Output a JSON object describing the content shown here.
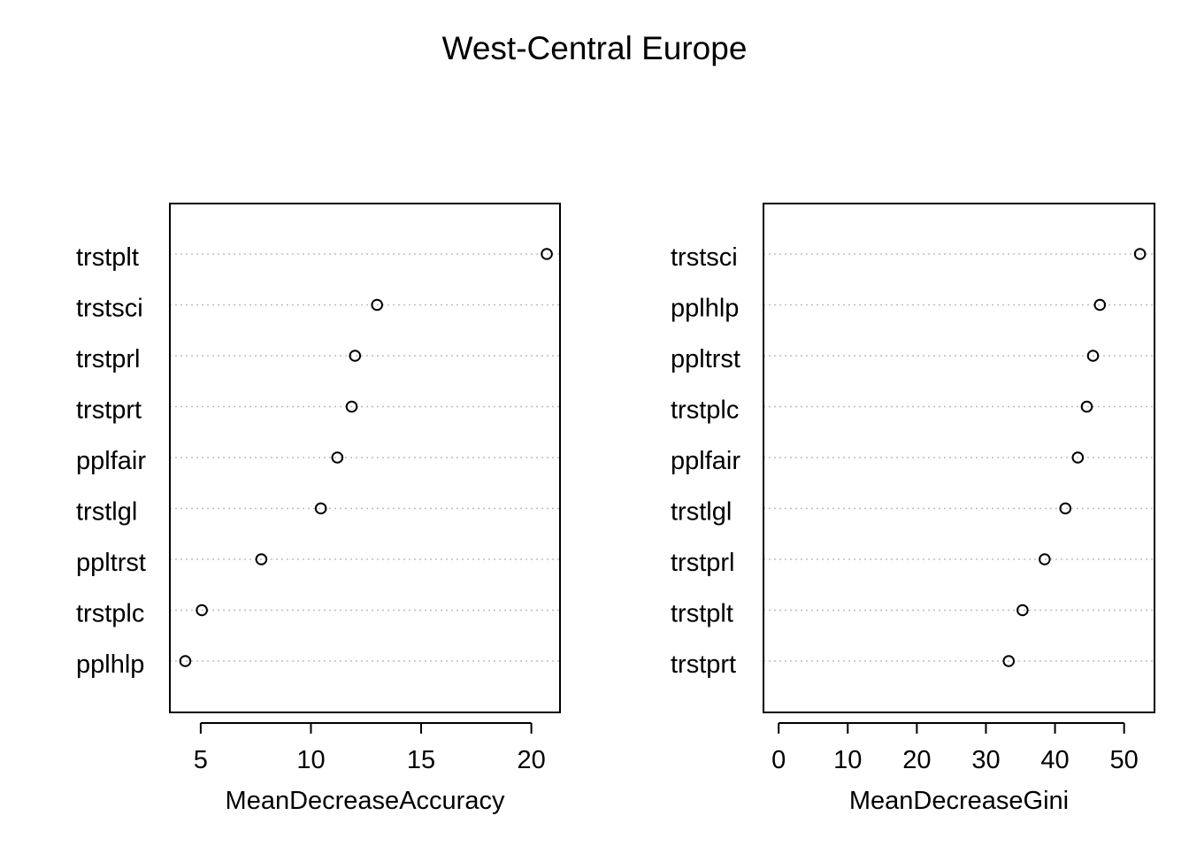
{
  "figure_title": "West-Central Europe",
  "chart_data": [
    {
      "type": "scatter",
      "subtype": "dotchart",
      "xlabel": "MeanDecreaseAccuracy",
      "xlim": [
        3.6,
        21.3
      ],
      "xticks": [
        5,
        10,
        15,
        20
      ],
      "grid": "dotted horizontal lines",
      "categories": [
        "trstplt",
        "trstsci",
        "trstprl",
        "trstprt",
        "pplfair",
        "trstlgl",
        "ppltrst",
        "trstplc",
        "pplhlp"
      ],
      "values": [
        20.7,
        13.0,
        12.0,
        11.85,
        11.2,
        10.45,
        7.75,
        5.05,
        4.3
      ]
    },
    {
      "type": "scatter",
      "subtype": "dotchart",
      "xlabel": "MeanDecreaseGini",
      "xlim": [
        -2.2,
        54.4
      ],
      "xticks": [
        0,
        10,
        20,
        30,
        40,
        50
      ],
      "grid": "dotted horizontal lines",
      "categories": [
        "trstsci",
        "pplhlp",
        "ppltrst",
        "trstplc",
        "pplfair",
        "trstlgl",
        "trstprl",
        "trstplt",
        "trstprt"
      ],
      "values": [
        52.3,
        46.5,
        45.5,
        44.6,
        43.3,
        41.5,
        38.5,
        35.3,
        33.3
      ]
    }
  ]
}
